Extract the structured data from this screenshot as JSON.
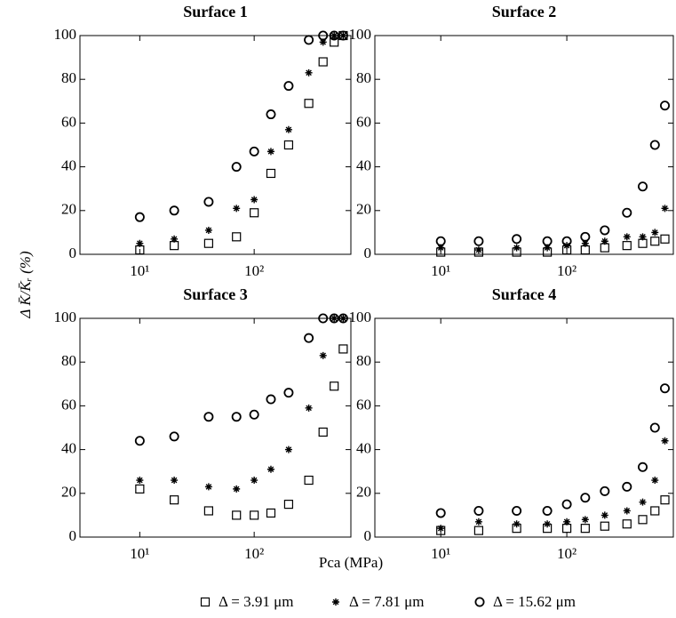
{
  "chart_data": [
    {
      "type": "scatter",
      "title": "Surface 1",
      "log_x": true,
      "x": [
        10,
        20,
        40,
        70,
        100,
        140,
        200,
        300,
        400,
        500,
        600
      ],
      "series": [
        {
          "marker": "square",
          "color": "#000000",
          "values": [
            2,
            4,
            5,
            8,
            19,
            37,
            50,
            69,
            88,
            97,
            100
          ]
        },
        {
          "marker": "star",
          "color": "#000000",
          "values": [
            5,
            7,
            11,
            21,
            25,
            47,
            57,
            83,
            97,
            100,
            100
          ]
        },
        {
          "marker": "circle",
          "color": "#000000",
          "values": [
            17,
            20,
            24,
            40,
            47,
            64,
            77,
            98,
            100,
            100,
            100
          ]
        }
      ],
      "xlim": [
        3,
        700
      ],
      "xticks": [
        {
          "value": 10,
          "label": "10¹"
        },
        {
          "value": 100,
          "label": "10²"
        }
      ],
      "ylim": [
        0,
        100
      ],
      "yticks": [
        0,
        20,
        40,
        60,
        80,
        100
      ]
    },
    {
      "type": "scatter",
      "title": "Surface 2",
      "log_x": true,
      "x": [
        10,
        20,
        40,
        70,
        100,
        140,
        200,
        300,
        400,
        500,
        600
      ],
      "series": [
        {
          "marker": "square",
          "color": "#000000",
          "values": [
            1,
            1,
            1,
            1,
            2,
            2,
            3,
            4,
            5,
            6,
            7
          ]
        },
        {
          "marker": "star",
          "color": "#000000",
          "values": [
            3,
            2,
            3,
            3,
            4,
            5,
            6,
            8,
            8,
            10,
            21
          ]
        },
        {
          "marker": "circle",
          "color": "#000000",
          "values": [
            6,
            6,
            7,
            6,
            6,
            8,
            11,
            19,
            31,
            50,
            68
          ]
        }
      ],
      "xlim": [
        3,
        700
      ],
      "xticks": [
        {
          "value": 10,
          "label": "10¹"
        },
        {
          "value": 100,
          "label": "10²"
        }
      ],
      "ylim": [
        0,
        100
      ],
      "yticks": [
        0,
        20,
        40,
        60,
        80,
        100
      ]
    },
    {
      "type": "scatter",
      "title": "Surface 3",
      "log_x": true,
      "x": [
        10,
        20,
        40,
        70,
        100,
        140,
        200,
        300,
        400,
        500,
        600
      ],
      "series": [
        {
          "marker": "square",
          "color": "#000000",
          "values": [
            22,
            17,
            12,
            10,
            10,
            11,
            15,
            26,
            48,
            69,
            86
          ]
        },
        {
          "marker": "star",
          "color": "#000000",
          "values": [
            26,
            26,
            23,
            22,
            26,
            31,
            40,
            59,
            83,
            100,
            100
          ]
        },
        {
          "marker": "circle",
          "color": "#000000",
          "values": [
            44,
            46,
            55,
            55,
            56,
            63,
            66,
            91,
            100,
            100,
            100
          ]
        }
      ],
      "xlim": [
        3,
        700
      ],
      "xticks": [
        {
          "value": 10,
          "label": "10¹"
        },
        {
          "value": 100,
          "label": "10²"
        }
      ],
      "ylim": [
        0,
        100
      ],
      "yticks": [
        0,
        20,
        40,
        60,
        80,
        100
      ]
    },
    {
      "type": "scatter",
      "title": "Surface 4",
      "log_x": true,
      "x": [
        10,
        20,
        40,
        70,
        100,
        140,
        200,
        300,
        400,
        500,
        600
      ],
      "series": [
        {
          "marker": "square",
          "color": "#000000",
          "values": [
            3,
            3,
            4,
            4,
            4,
            4,
            5,
            6,
            8,
            12,
            17
          ]
        },
        {
          "marker": "star",
          "color": "#000000",
          "values": [
            4,
            7,
            6,
            6,
            7,
            8,
            10,
            12,
            16,
            26,
            44
          ]
        },
        {
          "marker": "circle",
          "color": "#000000",
          "values": [
            11,
            12,
            12,
            12,
            15,
            18,
            21,
            23,
            32,
            50,
            68
          ]
        }
      ],
      "xlim": [
        3,
        700
      ],
      "xticks": [
        {
          "value": 10,
          "label": "10¹"
        },
        {
          "value": 100,
          "label": "10²"
        }
      ],
      "ylim": [
        0,
        100
      ],
      "yticks": [
        0,
        20,
        40,
        60,
        80,
        100
      ]
    }
  ],
  "xlabel": "Pca (MPa)",
  "ylabel": "Δ K̄/K̄ᵣ (%)",
  "legend": [
    {
      "name": "Δ = 3.91 μm",
      "marker": "square"
    },
    {
      "name": "Δ = 7.81 μm",
      "marker": "star"
    },
    {
      "name": "Δ = 15.62 μm",
      "marker": "circle"
    }
  ]
}
